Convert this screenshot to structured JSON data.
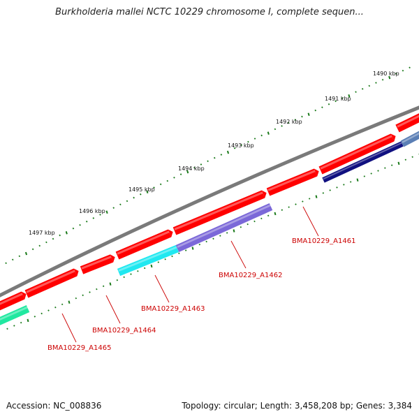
{
  "title": "Burkholderia mallei NCTC 10229 chromosome I, complete sequen...",
  "footer": {
    "accession": "Accession: NC_008836",
    "summary": "Topology: circular; Length: 3,458,208 bp; Genes: 3,384"
  },
  "map": {
    "ticks": [
      {
        "label": "1490 kbp"
      },
      {
        "label": "1491 kbp"
      },
      {
        "label": "1492 kbp"
      },
      {
        "label": "1493 kbp"
      },
      {
        "label": "1494 kbp"
      },
      {
        "label": "1495 kbp"
      },
      {
        "label": "1496 kbp"
      },
      {
        "label": "1497 kbp"
      }
    ],
    "genes": [
      {
        "label": "BMA10229_A1461",
        "color": "#e00000"
      },
      {
        "label": "BMA10229_A1462",
        "color": "#e00000"
      },
      {
        "label": "BMA10229_A1463",
        "color": "#e00000"
      },
      {
        "label": "BMA10229_A1464",
        "color": "#e00000"
      },
      {
        "label": "BMA10229_A1465",
        "color": "#e00000"
      }
    ],
    "colors": {
      "backbone": "#7a7a7a",
      "cds": "#ff0000",
      "ruler": "#1a7a1a",
      "label_text": "#cc0000",
      "label_line": "#cc0000",
      "feature_navy": "#101080",
      "feature_purple": "#7b68d8",
      "feature_cyan": "#20e8f0",
      "feature_green": "#20e8a0",
      "feature_steel": "#5b7fb5"
    }
  }
}
